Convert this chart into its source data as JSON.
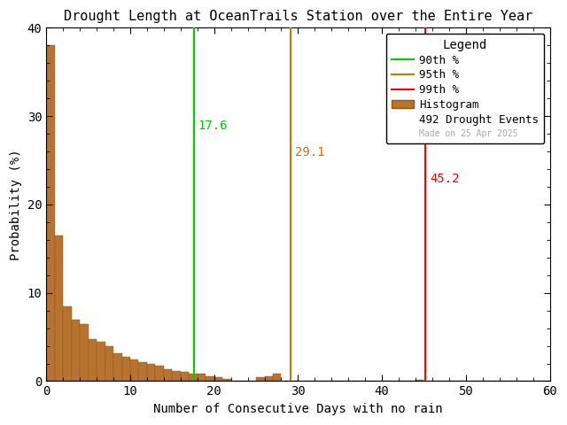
{
  "title": "Drought Length at OceanTrails Station over the Entire Year",
  "xlabel": "Number of Consecutive Days with no rain",
  "ylabel": "Probability (%)",
  "xlim": [
    0,
    60
  ],
  "ylim": [
    0,
    40
  ],
  "xticks": [
    0,
    10,
    20,
    30,
    40,
    50,
    60
  ],
  "yticks": [
    0,
    10,
    20,
    30,
    40
  ],
  "percentile_90": 17.6,
  "percentile_95": 29.1,
  "percentile_99": 45.2,
  "percentile_90_color": "#00cc00",
  "percentile_95_color": "#cc7700",
  "percentile_99_color": "#ff0000",
  "bar_color": "#b87333",
  "bar_edgecolor": "#8b5a00",
  "drought_events": 492,
  "date_label": "Made on 25 Apr 2025",
  "legend_title": "Legend",
  "background_color": "#ffffff",
  "hist_values": [
    38.0,
    16.5,
    8.5,
    7.0,
    6.5,
    4.8,
    4.5,
    4.0,
    3.2,
    2.8,
    2.5,
    2.2,
    2.0,
    1.8,
    1.4,
    1.2,
    1.0,
    0.8,
    0.8,
    0.5,
    0.4,
    0.2,
    0.0,
    0.0,
    0.0,
    0.4,
    0.5,
    0.8,
    0.0,
    0.0,
    0.0,
    0.0,
    0.0,
    0.0,
    0.0,
    0.0,
    0.0,
    0.0,
    0.0,
    0.0,
    0.0,
    0.0,
    0.0,
    0.0,
    0.1,
    0.0,
    0.0,
    0.0,
    0.0,
    0.0,
    0.0,
    0.0,
    0.0,
    0.0,
    0.0,
    0.0,
    0.0,
    0.0,
    0.0,
    0.0
  ]
}
